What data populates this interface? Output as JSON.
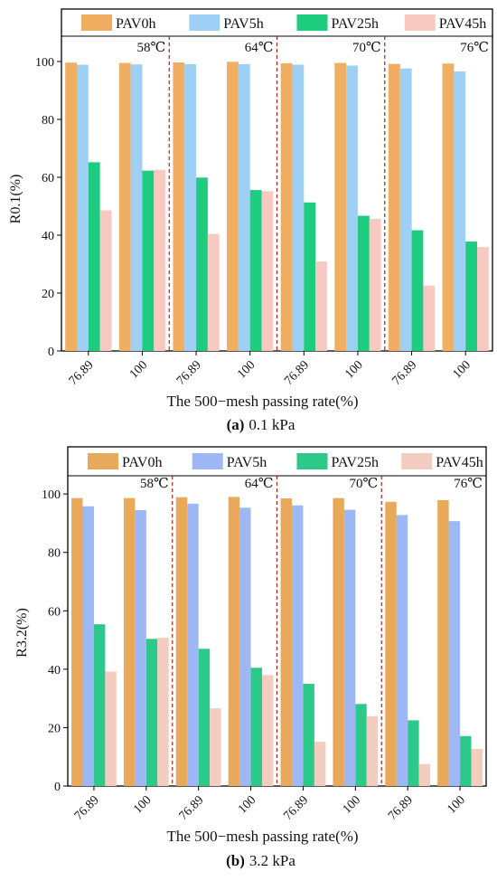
{
  "chart_data": [
    {
      "type": "bar",
      "panel_label": "(a)",
      "panel_caption": "0.1 kPa",
      "xlabel": "The 500−mesh passing rate(%)",
      "ylabel": "R0.1(%)",
      "ylim": [
        0,
        105
      ],
      "yticks": [
        0,
        20,
        40,
        60,
        80,
        100
      ],
      "grid": false,
      "legend_position": "top",
      "groups": [
        {
          "label": "58℃",
          "categories": [
            "76.89",
            "100"
          ]
        },
        {
          "label": "64℃",
          "categories": [
            "76.89",
            "100"
          ]
        },
        {
          "label": "70℃",
          "categories": [
            "76.89",
            "100"
          ]
        },
        {
          "label": "76℃",
          "categories": [
            "76.89",
            "100"
          ]
        }
      ],
      "series": [
        {
          "name": "PAV0h",
          "color": "#F0AE62",
          "values": [
            99.6,
            99.5,
            99.7,
            99.9,
            99.4,
            99.5,
            99.2,
            99.3
          ]
        },
        {
          "name": "PAV5h",
          "color": "#9ED0F5",
          "values": [
            98.9,
            99.0,
            99.1,
            99.1,
            98.9,
            98.6,
            97.6,
            96.6
          ]
        },
        {
          "name": "PAV25h",
          "color": "#1ECC7F",
          "values": [
            65.2,
            62.3,
            59.9,
            55.6,
            51.3,
            46.7,
            41.7,
            37.8
          ]
        },
        {
          "name": "PAV45h",
          "color": "#F8C9C0",
          "values": [
            48.6,
            62.6,
            40.4,
            55.2,
            30.9,
            45.6,
            22.6,
            35.9
          ]
        }
      ]
    },
    {
      "type": "bar",
      "panel_label": "(b)",
      "panel_caption": "3.2 kPa",
      "xlabel": "The 500−mesh passing rate(%)",
      "ylabel": "R3.2(%)",
      "ylim": [
        0,
        105
      ],
      "yticks": [
        0,
        20,
        40,
        60,
        80,
        100
      ],
      "grid": false,
      "legend_position": "top",
      "groups": [
        {
          "label": "58℃",
          "categories": [
            "76.89",
            "100"
          ]
        },
        {
          "label": "64℃",
          "categories": [
            "76.89",
            "100"
          ]
        },
        {
          "label": "70℃",
          "categories": [
            "76.89",
            "100"
          ]
        },
        {
          "label": "76℃",
          "categories": [
            "76.89",
            "100"
          ]
        }
      ],
      "series": [
        {
          "name": "PAV0h",
          "color": "#E8A95A",
          "values": [
            98.6,
            98.6,
            98.9,
            99.0,
            98.5,
            98.6,
            97.3,
            97.9
          ]
        },
        {
          "name": "PAV5h",
          "color": "#9DB8F4",
          "values": [
            95.8,
            94.5,
            96.7,
            95.3,
            96.1,
            94.6,
            92.8,
            90.7
          ]
        },
        {
          "name": "PAV25h",
          "color": "#2DC98A",
          "values": [
            55.4,
            50.4,
            47.0,
            40.5,
            35.0,
            28.1,
            22.5,
            17.1
          ]
        },
        {
          "name": "PAV45h",
          "color": "#F2CDC0",
          "values": [
            39.2,
            50.8,
            26.6,
            38.0,
            15.2,
            23.9,
            7.5,
            12.7
          ]
        }
      ]
    }
  ]
}
